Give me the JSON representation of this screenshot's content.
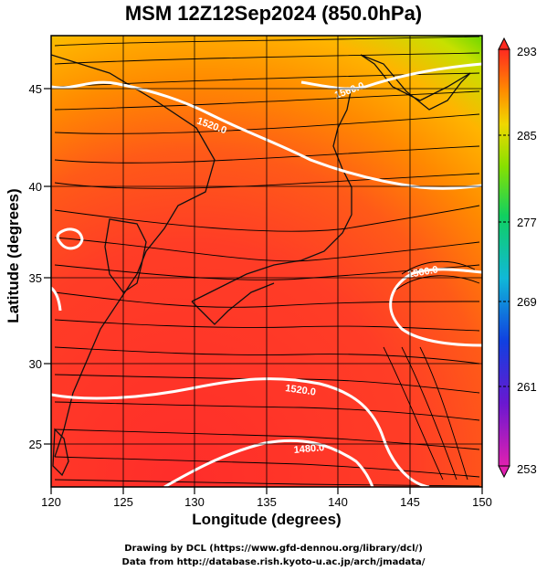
{
  "title": "MSM 12Z12Sep2024 (850.0hPa)",
  "axes": {
    "xlabel": "Longitude (degrees)",
    "ylabel": "Latitude  (degrees)",
    "xticks": [
      "120",
      "125",
      "130",
      "135",
      "140",
      "145",
      "150"
    ],
    "yticks": [
      "25",
      "30",
      "35",
      "40",
      "45"
    ]
  },
  "colorbar": {
    "ticks": [
      "293",
      "285",
      "277",
      "269",
      "261",
      "253"
    ]
  },
  "contours": [
    "1520.0",
    "1480.0",
    "1560.0",
    "1560.0",
    "1520.0"
  ],
  "credits": {
    "line1": "Drawing by DCL (https://www.gfd-dennou.org/library/dcl/)",
    "line2": "Data from http://database.rish.kyoto-u.ac.jp/arch/jmadata/"
  },
  "chart_data": {
    "type": "heatmap",
    "title": "MSM 12Z12Sep2024 (850.0hPa)",
    "xlabel": "Longitude (degrees)",
    "ylabel": "Latitude  (degrees)",
    "xlim": [
      120,
      150
    ],
    "ylim": [
      22.4,
      47.6
    ],
    "color_range": [
      253,
      293
    ],
    "contour_levels": [
      1480.0,
      1520.0,
      1560.0
    ],
    "colors": {
      "warm": "#ff3a2a",
      "mid": "#ff8c00",
      "cool": "#99e000",
      "contour": "#ffffff"
    }
  }
}
